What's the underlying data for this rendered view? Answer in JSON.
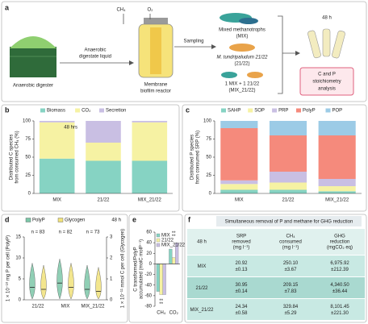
{
  "diagram": {
    "panel": "a",
    "ch4": "CH₄",
    "o2": "O₂",
    "digester": "Anaerobic digester",
    "liquid": [
      "Anaerobic",
      "digestate liquid"
    ],
    "reactor": [
      "Membrane",
      "biofilm reactor"
    ],
    "sampling": "Sampling",
    "mix": [
      "Mixed methanotrophs",
      "(MIX)"
    ],
    "pure": [
      "M. tundripaludum 21/22",
      "(21/22)"
    ],
    "combo": [
      "1 MIX + 1 21/22",
      "(MIX_21/22)"
    ],
    "time": "48 h",
    "analysis": [
      "C and P",
      "stoichiometry",
      "analysis"
    ]
  },
  "chart_data": [
    {
      "panel": "b",
      "type": "stacked_bar",
      "annotation": "48 hrs",
      "ylabel": [
        "Distributed C species",
        "from consumed CH₄ (%)"
      ],
      "categories": [
        "MIX",
        "21/22",
        "MIX_21/22"
      ],
      "series": [
        {
          "name": "Biomass",
          "color": "#86d3c3",
          "values": [
            48,
            45,
            45
          ]
        },
        {
          "name": "CO₂",
          "color": "#f6f2a3",
          "values": [
            50,
            25,
            53
          ]
        },
        {
          "name": "Secretion",
          "color": "#c9bfe3",
          "values": [
            2,
            30,
            2
          ]
        }
      ],
      "ylim": [
        0,
        100
      ],
      "yticks": [
        0,
        25,
        50,
        75,
        100
      ]
    },
    {
      "panel": "c",
      "type": "stacked_bar",
      "ylabel": [
        "Distributed P species",
        "from consumed SRP (%)"
      ],
      "categories": [
        "MIX",
        "21/22",
        "MIX_21/22"
      ],
      "series": [
        {
          "name": "SAHP",
          "color": "#86d3c3",
          "values": [
            5,
            5,
            3
          ]
        },
        {
          "name": "SOP",
          "color": "#f6f2a3",
          "values": [
            8,
            10,
            7
          ]
        },
        {
          "name": "PRP",
          "color": "#c9bfe3",
          "values": [
            5,
            15,
            10
          ]
        },
        {
          "name": "PolyP",
          "color": "#f58a7c",
          "values": [
            72,
            50,
            60
          ]
        },
        {
          "name": "POP",
          "color": "#9ccbe6",
          "values": [
            10,
            20,
            20
          ]
        }
      ],
      "ylim": [
        0,
        100
      ],
      "yticks": [
        0,
        25,
        50,
        75,
        100
      ]
    },
    {
      "panel": "d",
      "type": "violin",
      "annotation": "48 h",
      "ylabel": "1 × 10⁻¹⁰ mg P per cell (PolyP)",
      "y2label": "1 × 10⁻¹¹ mmol C per cell (Glycogen)",
      "categories": [
        "21/22",
        "MIX",
        "MIX_21/22"
      ],
      "counts": [
        "n = 83",
        "n = 82",
        "n = 73"
      ],
      "series": [
        {
          "name": "PolyP",
          "color": "#7cc7a8",
          "values": [
            3,
            4,
            2.5
          ]
        },
        {
          "name": "Glycogen",
          "color": "#f1e27a",
          "axis": "y2",
          "values": [
            0.5,
            0.6,
            0.4
          ]
        }
      ],
      "ylim": [
        0,
        15
      ],
      "yticks": [
        0,
        5,
        10,
        15
      ],
      "y2lim": [
        0,
        3
      ],
      "y2ticks": [
        0,
        1,
        2,
        3
      ]
    },
    {
      "panel": "e",
      "type": "grouped_bar",
      "ylabel": [
        "C transformed/PolyP",
        "accumulated (molC molP⁻¹)"
      ],
      "categories": [
        "CH₄",
        "CO₂"
      ],
      "series": [
        {
          "name": "MIX",
          "color": "#86d3c3",
          "values": [
            -52,
            28
          ]
        },
        {
          "name": "21/22",
          "color": "#f6f2a3",
          "values": [
            -58,
            12
          ]
        },
        {
          "name": "MIX_21/22",
          "color": "#c9bfe3",
          "values": [
            -58,
            40
          ]
        }
      ],
      "significance": [
        "**",
        "**",
        "**",
        "**"
      ],
      "ylim": [
        -80,
        60
      ],
      "yticks": [
        -80,
        -60,
        -40,
        -20,
        0,
        20,
        40,
        60
      ]
    }
  ],
  "table": {
    "panel": "f",
    "title": "Simultaneous removal of P and methane for GHG reduction",
    "header": [
      [
        "48 h"
      ],
      [
        "SRP",
        "removed",
        "(mg l⁻¹)"
      ],
      [
        "CH₄",
        "consumed",
        "(mg l⁻¹)"
      ],
      [
        "GHG",
        "reduction",
        "(mgCO₂ eq)"
      ]
    ],
    "rows": [
      [
        [
          "MIX"
        ],
        [
          "20.92",
          "±0.13"
        ],
        [
          "250.10",
          "±3.67"
        ],
        [
          "6,975.92",
          "±212.39"
        ]
      ],
      [
        [
          "21/22"
        ],
        [
          "30.95",
          "±0.14"
        ],
        [
          "209.15",
          "±7.83"
        ],
        [
          "4,340.50",
          "±36.44"
        ]
      ],
      [
        [
          "MIX_21/22"
        ],
        [
          "24.34",
          "±0.58"
        ],
        [
          "329.84",
          "±5.29"
        ],
        [
          "8,101.45",
          "±221.30"
        ]
      ]
    ]
  }
}
